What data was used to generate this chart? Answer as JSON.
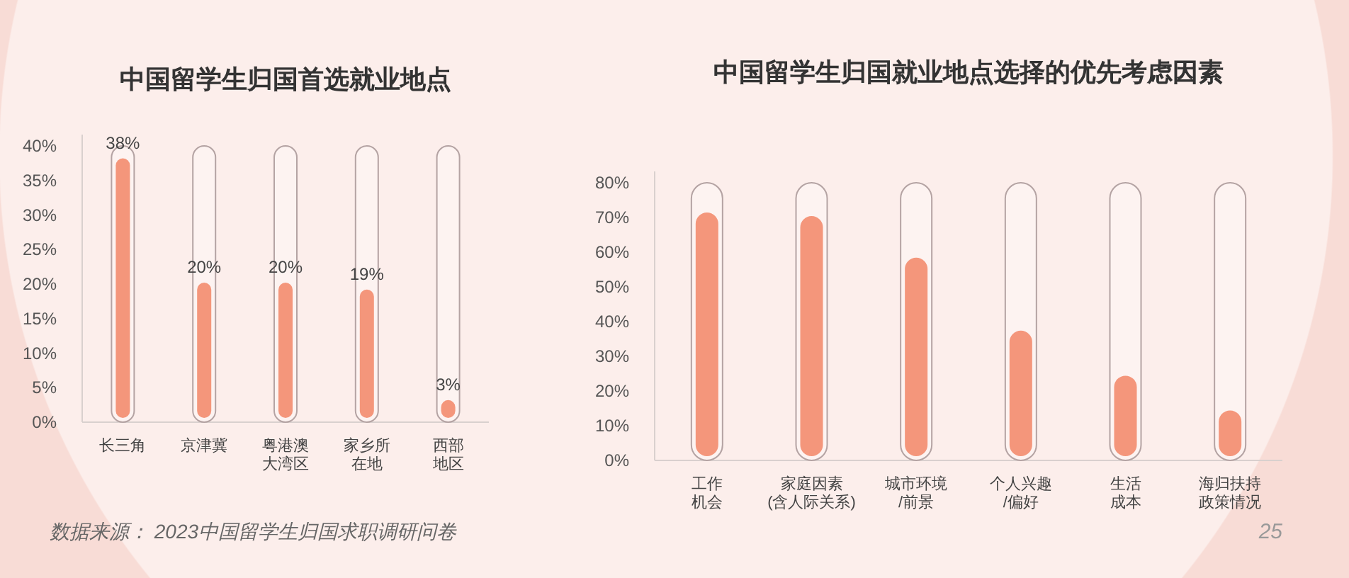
{
  "chart_data": [
    {
      "type": "bar",
      "title": "中国留学生归国首选就业地点",
      "categories": [
        "长三角",
        "京津冀",
        "粤港澳大湾区",
        "家乡所在地",
        "西部地区"
      ],
      "values": [
        38,
        20,
        20,
        19,
        3
      ],
      "value_labels": [
        "38%",
        "20%",
        "20%",
        "19%",
        "3%"
      ],
      "color": "#f4967b",
      "ylim": [
        0,
        40
      ],
      "yticks": [
        {
          "value": 0,
          "label": "0%"
        },
        {
          "value": 5,
          "label": "5%"
        },
        {
          "value": 10,
          "label": "10%"
        },
        {
          "value": 15,
          "label": "15%"
        },
        {
          "value": 20,
          "label": "20%"
        },
        {
          "value": 25,
          "label": "25%"
        },
        {
          "value": 30,
          "label": "30%"
        },
        {
          "value": 35,
          "label": "35%"
        },
        {
          "value": 40,
          "label": "40%"
        }
      ],
      "grid": false,
      "legend": false,
      "annotations": [
        "数据来源： 2023中国留学生归国求职调研问卷"
      ]
    },
    {
      "type": "bar",
      "title": "中国留学生归国就业地点选择的优先考虑因素",
      "categories": [
        "工作机会",
        "家庭因素(含人际关系)",
        "城市环境/前景",
        "个人兴趣/偏好",
        "生活成本",
        "海归扶持政策情况"
      ],
      "values": [
        71,
        70,
        58,
        37,
        24,
        14
      ],
      "color": "#f4967b",
      "ylim": [
        0,
        80
      ],
      "yticks": [
        {
          "value": 0,
          "label": "0%"
        },
        {
          "value": 10,
          "label": "10%"
        },
        {
          "value": 20,
          "label": "20%"
        },
        {
          "value": 30,
          "label": "30%"
        },
        {
          "value": 40,
          "label": "40%"
        },
        {
          "value": 50,
          "label": "50%"
        },
        {
          "value": 60,
          "label": "60%"
        },
        {
          "value": 70,
          "label": "70%"
        },
        {
          "value": 80,
          "label": "80%"
        }
      ],
      "grid": false,
      "legend": false,
      "annotations": [
        "25"
      ]
    }
  ]
}
